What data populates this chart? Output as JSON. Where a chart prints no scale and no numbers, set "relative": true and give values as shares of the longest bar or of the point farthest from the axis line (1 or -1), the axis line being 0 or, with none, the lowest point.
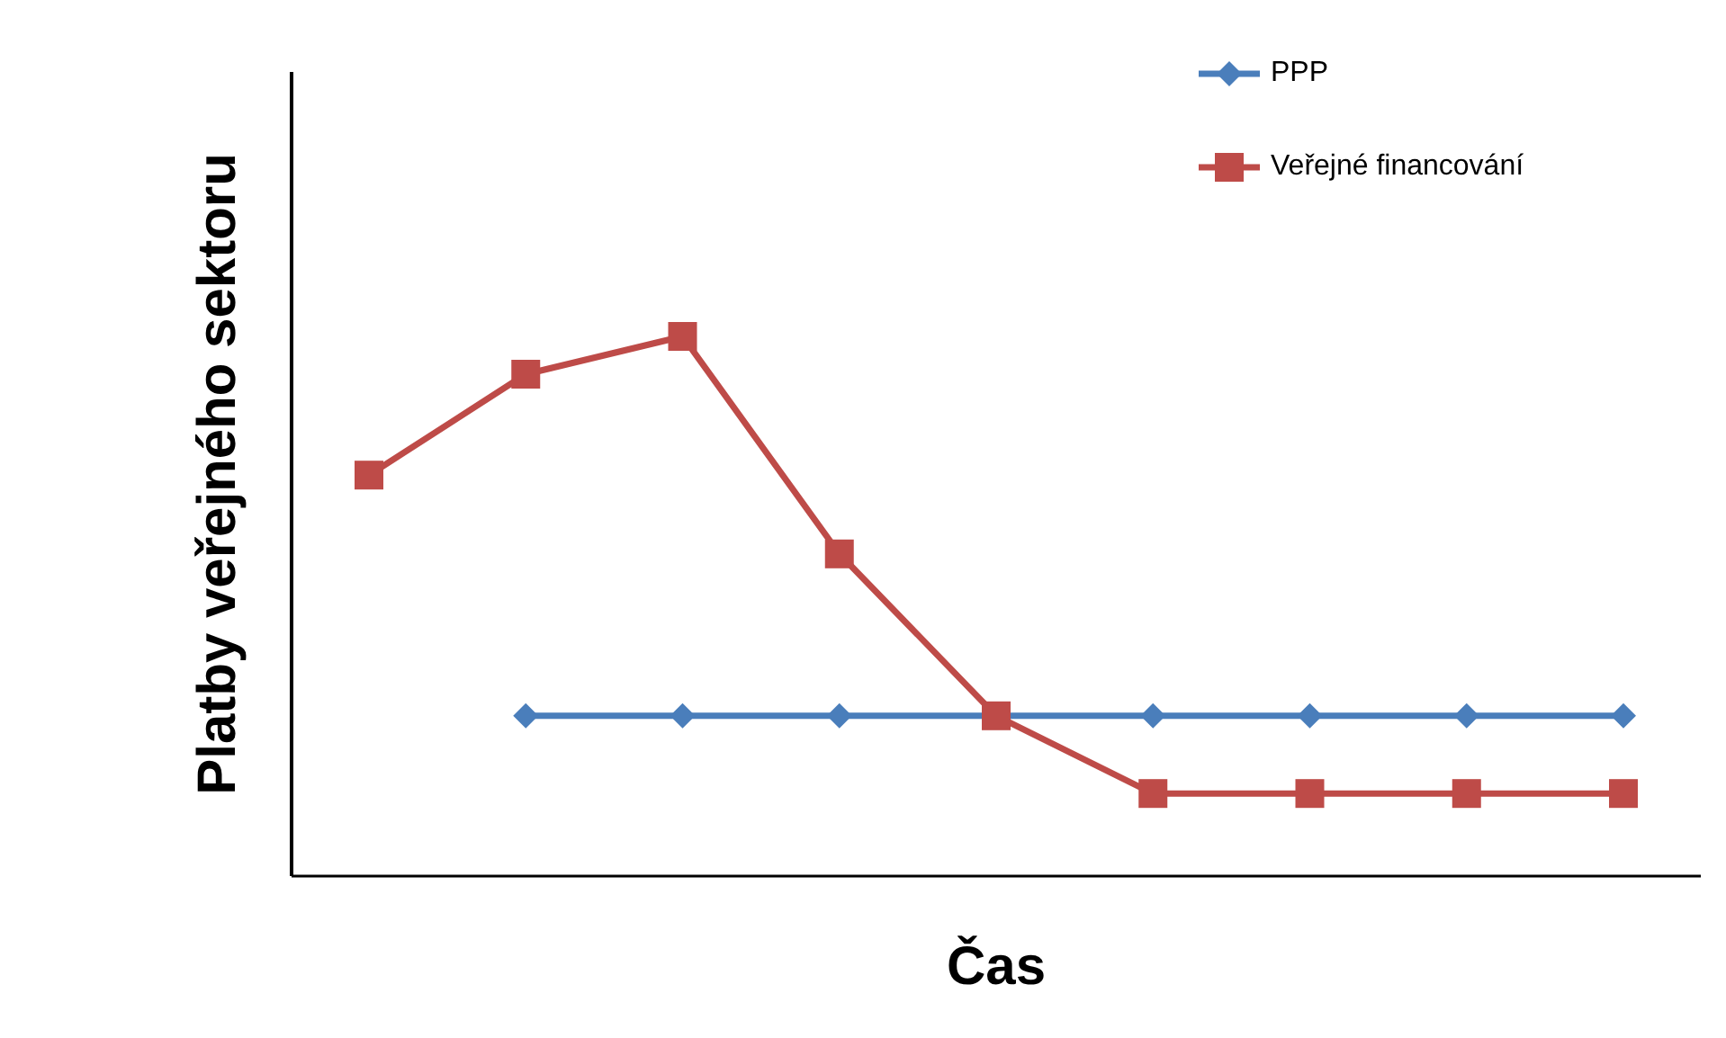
{
  "chart_data": {
    "type": "line",
    "relative": true,
    "xlabel": "Čas",
    "ylabel": "Platby veřejného sektoru",
    "categories": [
      null,
      null,
      null,
      null,
      null,
      null,
      null,
      null,
      null
    ],
    "legend": "top right",
    "grid": false,
    "series": [
      {
        "name": "PPP",
        "color": "#4a7ebb",
        "marker": "diamond",
        "values": [
          null,
          0.297,
          0.297,
          0.297,
          0.297,
          0.297,
          0.297,
          0.297,
          0.297
        ]
      },
      {
        "name": "Veřejné financování",
        "color": "#be4b48",
        "marker": "square",
        "values": [
          0.743,
          0.93,
          1,
          0.597,
          0.297,
          0.153,
          0.153,
          0.153,
          0.153
        ]
      }
    ]
  }
}
